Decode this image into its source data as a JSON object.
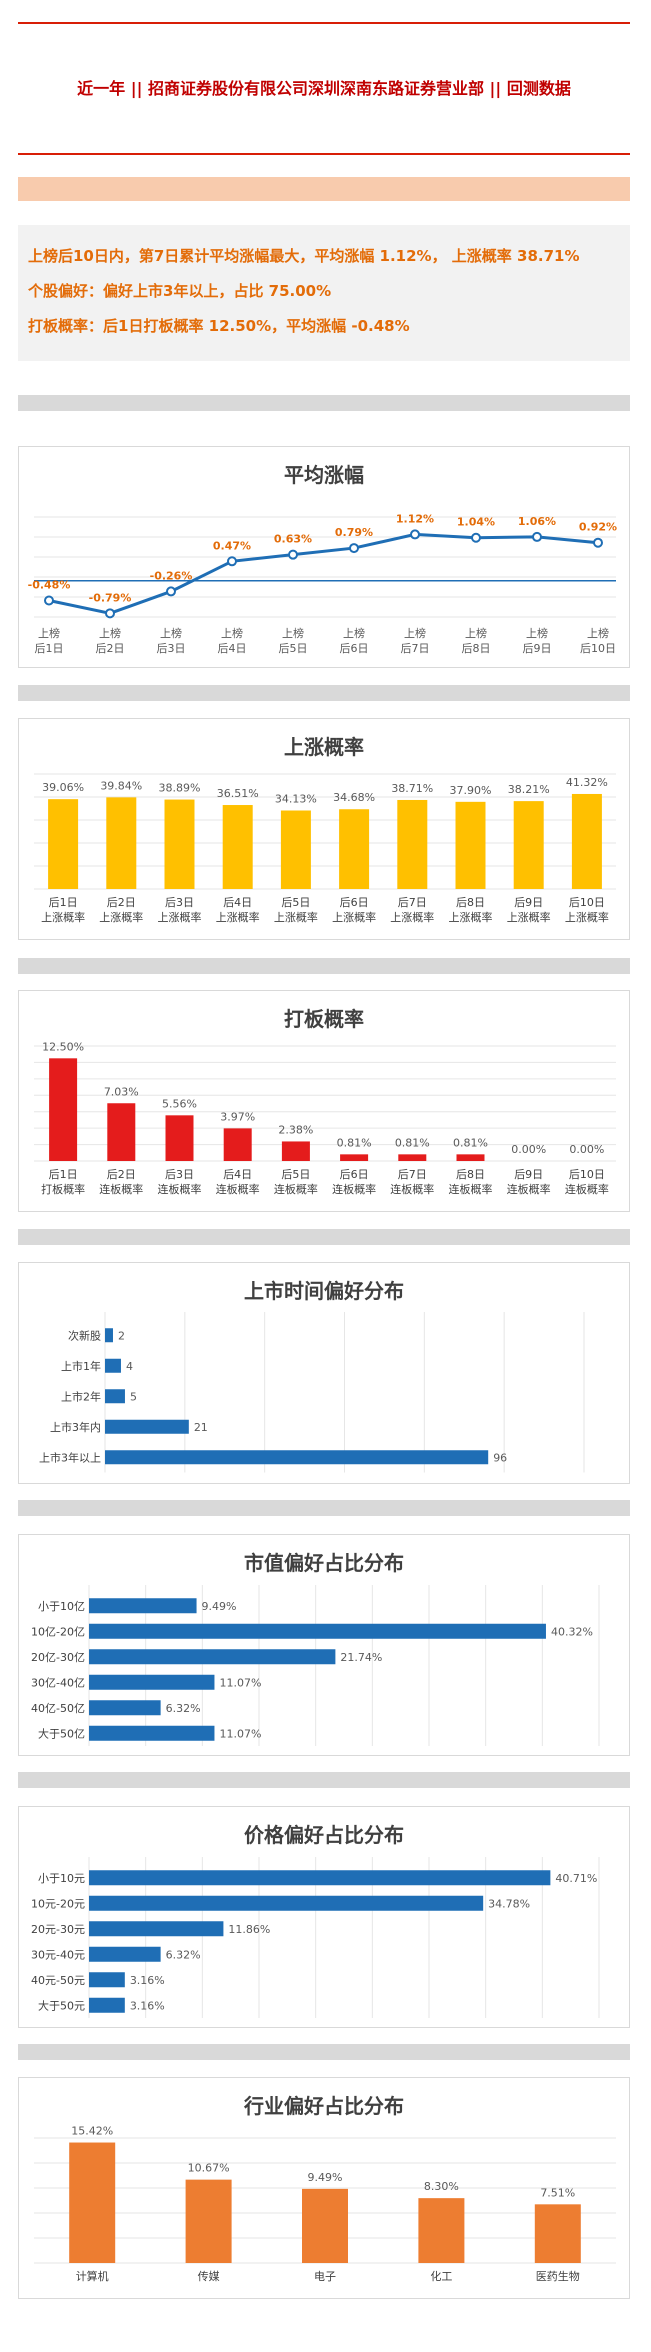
{
  "header": {
    "title": "近一年  ||  招商证券股份有限公司深圳深南东路证券营业部  ||  回测数据"
  },
  "summary": {
    "line1": "上榜后10日内，第7日累计平均涨幅最大，平均涨幅 1.12%， 上涨概率 38.71%",
    "line2": "个股偏好：偏好上市3年以上，占比 75.00%",
    "line3": "打板概率：后1日打板概率 12.50%，平均涨幅 -0.48%"
  },
  "chart_data": [
    {
      "id": "avg",
      "type": "line",
      "title": "平均涨幅",
      "categories": [
        "上榜\n后1日",
        "上榜\n后2日",
        "上榜\n后3日",
        "上榜\n后4日",
        "上榜\n后5日",
        "上榜\n后6日",
        "上榜\n后7日",
        "上榜\n后8日",
        "上榜\n后9日",
        "上榜\n后10日"
      ],
      "values": [
        -0.48,
        -0.79,
        -0.26,
        0.47,
        0.63,
        0.79,
        1.12,
        1.04,
        1.06,
        0.92
      ],
      "labels": [
        "-0.48%",
        "-0.79%",
        "-0.26%",
        "0.47%",
        "0.63%",
        "0.79%",
        "1.12%",
        "1.04%",
        "1.06%",
        "0.92%"
      ],
      "color": "#1f6eb5",
      "label_color": "#e36c09"
    },
    {
      "id": "rise",
      "type": "bar",
      "title": "上涨概率",
      "categories": [
        "后1日\n上涨概率",
        "后2日\n上涨概率",
        "后3日\n上涨概率",
        "后4日\n上涨概率",
        "后5日\n上涨概率",
        "后6日\n上涨概率",
        "后7日\n上涨概率",
        "后8日\n上涨概率",
        "后9日\n上涨概率",
        "后10日\n上涨概率"
      ],
      "values": [
        39.06,
        39.84,
        38.89,
        36.51,
        34.13,
        34.68,
        38.71,
        37.9,
        38.21,
        41.32
      ],
      "labels": [
        "39.06%",
        "39.84%",
        "38.89%",
        "36.51%",
        "34.13%",
        "34.68%",
        "38.71%",
        "37.90%",
        "38.21%",
        "41.32%"
      ],
      "color": "#ffc000"
    },
    {
      "id": "limit",
      "type": "bar",
      "title": "打板概率",
      "categories": [
        "后1日\n打板概率",
        "后2日\n连板概率",
        "后3日\n连板概率",
        "后4日\n连板概率",
        "后5日\n连板概率",
        "后6日\n连板概率",
        "后7日\n连板概率",
        "后8日\n连板概率",
        "后9日\n连板概率",
        "后10日\n连板概率"
      ],
      "values": [
        12.5,
        7.03,
        5.56,
        3.97,
        2.38,
        0.81,
        0.81,
        0.81,
        0.0,
        0.0
      ],
      "labels": [
        "12.50%",
        "7.03%",
        "5.56%",
        "3.97%",
        "2.38%",
        "0.81%",
        "0.81%",
        "0.81%",
        "0.00%",
        "0.00%"
      ],
      "color": "#e41c1c"
    },
    {
      "id": "listing",
      "type": "bar",
      "orientation": "horizontal",
      "title": "上市时间偏好分布",
      "categories": [
        "次新股",
        "上市1年",
        "上市2年",
        "上市3年内",
        "上市3年以上"
      ],
      "values": [
        2,
        4,
        5,
        21,
        96
      ],
      "labels": [
        "2",
        "4",
        "5",
        "21",
        "96"
      ],
      "color": "#1f6eb5"
    },
    {
      "id": "mcap",
      "type": "bar",
      "orientation": "horizontal",
      "title": "市值偏好占比分布",
      "categories": [
        "小于10亿",
        "10亿-20亿",
        "20亿-30亿",
        "30亿-40亿",
        "40亿-50亿",
        "大于50亿"
      ],
      "values": [
        9.49,
        40.32,
        21.74,
        11.07,
        6.32,
        11.07
      ],
      "labels": [
        "9.49%",
        "40.32%",
        "21.74%",
        "11.07%",
        "6.32%",
        "11.07%"
      ],
      "color": "#1f6eb5"
    },
    {
      "id": "price",
      "type": "bar",
      "orientation": "horizontal",
      "title": "价格偏好占比分布",
      "categories": [
        "小于10元",
        "10元-20元",
        "20元-30元",
        "30元-40元",
        "40元-50元",
        "大于50元"
      ],
      "values": [
        40.71,
        34.78,
        11.86,
        6.32,
        3.16,
        3.16
      ],
      "labels": [
        "40.71%",
        "34.78%",
        "11.86%",
        "6.32%",
        "3.16%",
        "3.16%"
      ],
      "color": "#1f6eb5"
    },
    {
      "id": "industry",
      "type": "bar",
      "title": "行业偏好占比分布",
      "categories": [
        "计算机",
        "传媒",
        "电子",
        "化工",
        "医药生物"
      ],
      "values": [
        15.42,
        10.67,
        9.49,
        8.3,
        7.51
      ],
      "labels": [
        "15.42%",
        "10.67%",
        "9.49%",
        "8.30%",
        "7.51%"
      ],
      "color": "#ed7d31"
    }
  ]
}
